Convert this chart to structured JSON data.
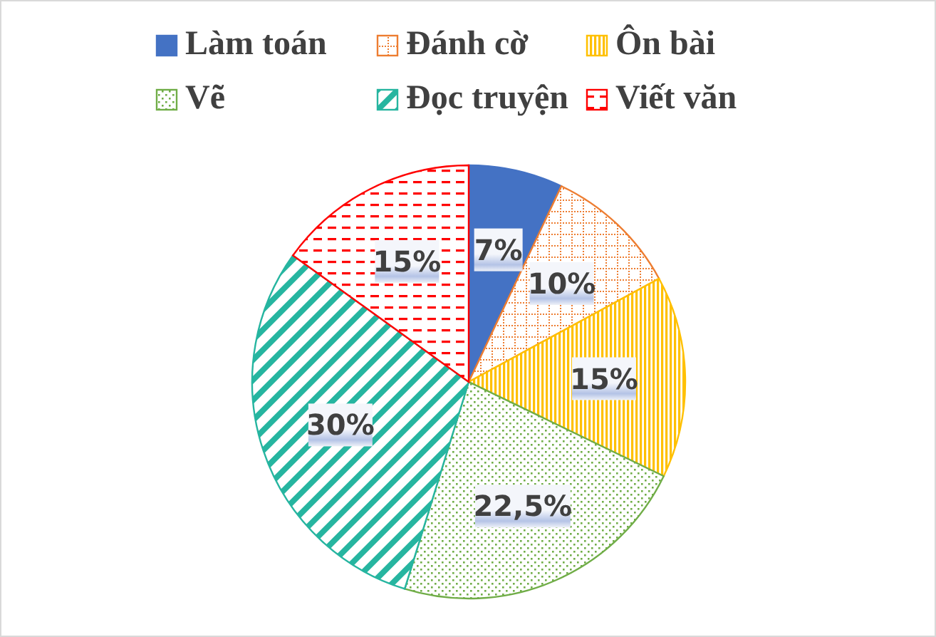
{
  "chart_data": {
    "type": "pie",
    "categories": [
      "Làm toán",
      "Đánh cờ",
      "Ôn bài",
      "Vẽ",
      "Đọc truyện",
      "Viết văn"
    ],
    "values": [
      7,
      10,
      15,
      22.5,
      30,
      15
    ],
    "value_labels": [
      "7%",
      "10%",
      "15%",
      "22,5%",
      "30%",
      "15%"
    ],
    "colors": [
      "#4472c4",
      "#ed7d31",
      "#ffc000",
      "#70ad47",
      "#26b5a0",
      "#ff0000"
    ],
    "legend": "top"
  }
}
